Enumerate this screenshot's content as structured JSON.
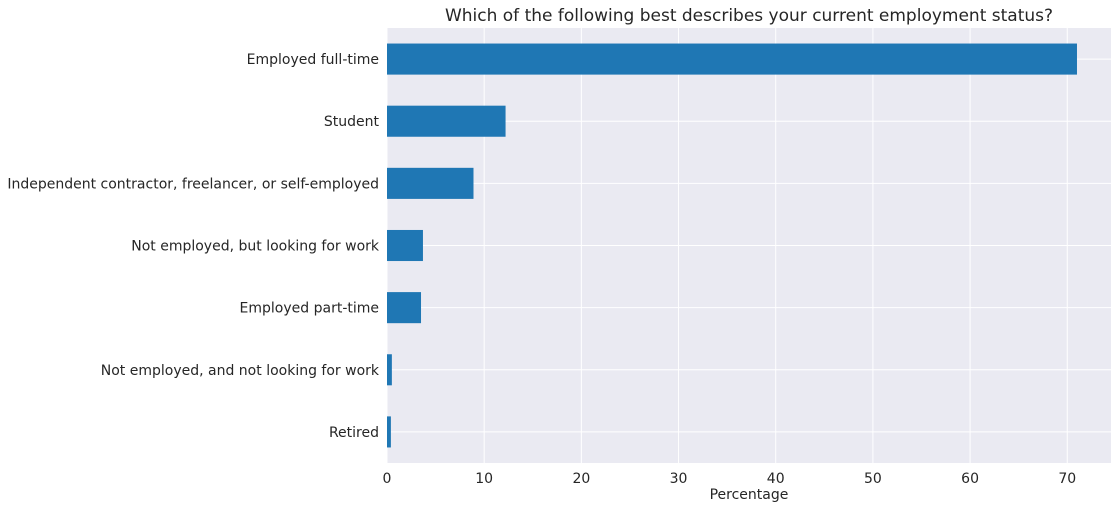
{
  "chart_data": {
    "type": "bar",
    "orientation": "horizontal",
    "title": "Which of the following best describes your current employment status?",
    "xlabel": "Percentage",
    "ylabel": "",
    "categories": [
      "Employed full-time",
      "Student",
      "Independent contractor, freelancer, or self-employed",
      "Not employed, but looking for work",
      "Employed part-time",
      "Not employed, and not looking for work",
      "Retired"
    ],
    "values": [
      71.0,
      12.2,
      8.9,
      3.7,
      3.5,
      0.5,
      0.4
    ],
    "xlim": [
      0,
      74.5
    ],
    "xticks": [
      0,
      10,
      20,
      30,
      40,
      50,
      60,
      70
    ],
    "grid": true,
    "colors": {
      "bar": "#1f77b4",
      "plot_background": "#eaeaf2",
      "grid": "#ffffff",
      "text": "#262626"
    }
  }
}
